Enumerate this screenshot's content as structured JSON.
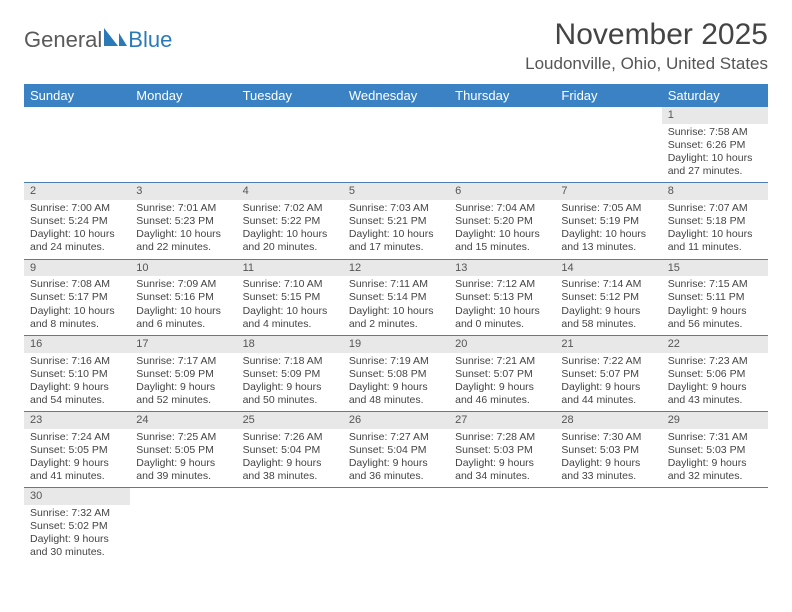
{
  "logo": {
    "part1": "General",
    "part2": "Blue",
    "icon_color": "#2a7ab8"
  },
  "title": "November 2025",
  "location": "Loudonville, Ohio, United States",
  "colors": {
    "header_bg": "#3b82c4",
    "header_text": "#ffffff",
    "daynum_bg": "#e8e8e8",
    "border": "#4a7fb0",
    "text": "#444444"
  },
  "weekdays": [
    "Sunday",
    "Monday",
    "Tuesday",
    "Wednesday",
    "Thursday",
    "Friday",
    "Saturday"
  ],
  "weeks": [
    [
      null,
      null,
      null,
      null,
      null,
      null,
      {
        "n": "1",
        "sr": "7:58 AM",
        "ss": "6:26 PM",
        "dl": "10 hours and 27 minutes."
      }
    ],
    [
      {
        "n": "2",
        "sr": "7:00 AM",
        "ss": "5:24 PM",
        "dl": "10 hours and 24 minutes."
      },
      {
        "n": "3",
        "sr": "7:01 AM",
        "ss": "5:23 PM",
        "dl": "10 hours and 22 minutes."
      },
      {
        "n": "4",
        "sr": "7:02 AM",
        "ss": "5:22 PM",
        "dl": "10 hours and 20 minutes."
      },
      {
        "n": "5",
        "sr": "7:03 AM",
        "ss": "5:21 PM",
        "dl": "10 hours and 17 minutes."
      },
      {
        "n": "6",
        "sr": "7:04 AM",
        "ss": "5:20 PM",
        "dl": "10 hours and 15 minutes."
      },
      {
        "n": "7",
        "sr": "7:05 AM",
        "ss": "5:19 PM",
        "dl": "10 hours and 13 minutes."
      },
      {
        "n": "8",
        "sr": "7:07 AM",
        "ss": "5:18 PM",
        "dl": "10 hours and 11 minutes."
      }
    ],
    [
      {
        "n": "9",
        "sr": "7:08 AM",
        "ss": "5:17 PM",
        "dl": "10 hours and 8 minutes."
      },
      {
        "n": "10",
        "sr": "7:09 AM",
        "ss": "5:16 PM",
        "dl": "10 hours and 6 minutes."
      },
      {
        "n": "11",
        "sr": "7:10 AM",
        "ss": "5:15 PM",
        "dl": "10 hours and 4 minutes."
      },
      {
        "n": "12",
        "sr": "7:11 AM",
        "ss": "5:14 PM",
        "dl": "10 hours and 2 minutes."
      },
      {
        "n": "13",
        "sr": "7:12 AM",
        "ss": "5:13 PM",
        "dl": "10 hours and 0 minutes."
      },
      {
        "n": "14",
        "sr": "7:14 AM",
        "ss": "5:12 PM",
        "dl": "9 hours and 58 minutes."
      },
      {
        "n": "15",
        "sr": "7:15 AM",
        "ss": "5:11 PM",
        "dl": "9 hours and 56 minutes."
      }
    ],
    [
      {
        "n": "16",
        "sr": "7:16 AM",
        "ss": "5:10 PM",
        "dl": "9 hours and 54 minutes."
      },
      {
        "n": "17",
        "sr": "7:17 AM",
        "ss": "5:09 PM",
        "dl": "9 hours and 52 minutes."
      },
      {
        "n": "18",
        "sr": "7:18 AM",
        "ss": "5:09 PM",
        "dl": "9 hours and 50 minutes."
      },
      {
        "n": "19",
        "sr": "7:19 AM",
        "ss": "5:08 PM",
        "dl": "9 hours and 48 minutes."
      },
      {
        "n": "20",
        "sr": "7:21 AM",
        "ss": "5:07 PM",
        "dl": "9 hours and 46 minutes."
      },
      {
        "n": "21",
        "sr": "7:22 AM",
        "ss": "5:07 PM",
        "dl": "9 hours and 44 minutes."
      },
      {
        "n": "22",
        "sr": "7:23 AM",
        "ss": "5:06 PM",
        "dl": "9 hours and 43 minutes."
      }
    ],
    [
      {
        "n": "23",
        "sr": "7:24 AM",
        "ss": "5:05 PM",
        "dl": "9 hours and 41 minutes."
      },
      {
        "n": "24",
        "sr": "7:25 AM",
        "ss": "5:05 PM",
        "dl": "9 hours and 39 minutes."
      },
      {
        "n": "25",
        "sr": "7:26 AM",
        "ss": "5:04 PM",
        "dl": "9 hours and 38 minutes."
      },
      {
        "n": "26",
        "sr": "7:27 AM",
        "ss": "5:04 PM",
        "dl": "9 hours and 36 minutes."
      },
      {
        "n": "27",
        "sr": "7:28 AM",
        "ss": "5:03 PM",
        "dl": "9 hours and 34 minutes."
      },
      {
        "n": "28",
        "sr": "7:30 AM",
        "ss": "5:03 PM",
        "dl": "9 hours and 33 minutes."
      },
      {
        "n": "29",
        "sr": "7:31 AM",
        "ss": "5:03 PM",
        "dl": "9 hours and 32 minutes."
      }
    ],
    [
      {
        "n": "30",
        "sr": "7:32 AM",
        "ss": "5:02 PM",
        "dl": "9 hours and 30 minutes."
      },
      null,
      null,
      null,
      null,
      null,
      null
    ]
  ],
  "labels": {
    "sunrise": "Sunrise:",
    "sunset": "Sunset:",
    "daylight": "Daylight:"
  }
}
